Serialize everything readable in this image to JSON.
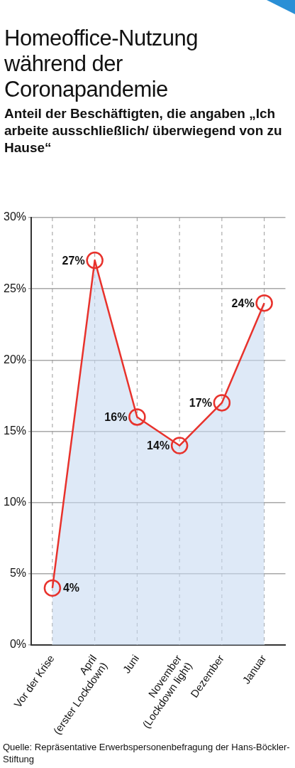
{
  "chart_data": {
    "type": "area",
    "title": "Homeoffice-Nutzung während der Coronapandemie",
    "subtitle": "Anteil der Beschäftigten, die angaben „Ich arbeite ausschließlich/ überwiegend von zu Hause“",
    "categories": [
      "Vor der Krise",
      "April\n(erster Lockdown)",
      "Juni",
      "November\n(Lockdown light)",
      "Dezember",
      "Januar"
    ],
    "series": [
      {
        "color": "#e8322c",
        "values": [
          4,
          27,
          16,
          14,
          17,
          24
        ],
        "value_labels": [
          "4%",
          "27%",
          "16%",
          "14%",
          "17%",
          "24%"
        ]
      }
    ],
    "ylim": [
      0,
      30
    ],
    "yticks": [
      {
        "value": 0,
        "label": "0%"
      },
      {
        "value": 5,
        "label": "5%"
      },
      {
        "value": 10,
        "label": "10%"
      },
      {
        "value": 15,
        "label": "15%"
      },
      {
        "value": 20,
        "label": "20%"
      },
      {
        "value": 25,
        "label": "25%"
      },
      {
        "value": 30,
        "label": "30%"
      }
    ],
    "grid": true,
    "legend": false,
    "marker": "circle",
    "line_style": "solid",
    "annotations": [
      "Quelle: Repräsentative Erwerbspersonenbefragung der Hans-Böckler-Stiftung"
    ]
  }
}
